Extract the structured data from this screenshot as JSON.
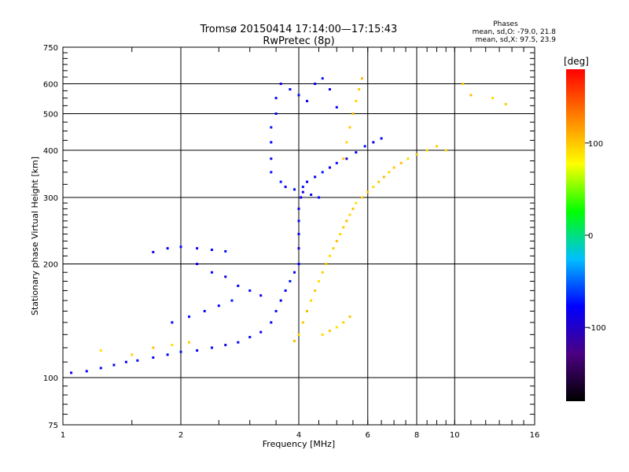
{
  "chart_data": {
    "type": "scatter",
    "title": "Tromsø 20150414 17:14:00—17:15:43",
    "subtitle": "RwPretec (8p)",
    "stats": {
      "heading": "Phases",
      "line1": "mean, sd,O: -79.0, 21.8",
      "line2": "mean, sd,X: 97.5, 23.9"
    },
    "xlabel": "Frequency [MHz]",
    "ylabel": "Stationary phase Virtual Height [km]",
    "xscale": "log",
    "yscale": "log",
    "xlim": [
      1,
      16
    ],
    "ylim": [
      75,
      750
    ],
    "xticks": [
      1,
      2,
      4,
      6,
      8,
      10,
      16
    ],
    "yticks": [
      75,
      100,
      200,
      300,
      400,
      500,
      600,
      750
    ],
    "grid": true,
    "colorbar": {
      "label": "[deg]",
      "range": [
        -180,
        180
      ],
      "ticks": [
        100,
        0,
        -100
      ],
      "colors": [
        "#000000",
        "#4b0082",
        "#0000ff",
        "#00bfff",
        "#00ff00",
        "#ffff00",
        "#ff8000",
        "#ff0000"
      ]
    },
    "series": [
      {
        "mode": "O",
        "phase_mean": -79.0,
        "phase_sd": 21.8,
        "points": [
          [
            1.05,
            103
          ],
          [
            1.15,
            104
          ],
          [
            1.25,
            106
          ],
          [
            1.35,
            108
          ],
          [
            1.45,
            110
          ],
          [
            1.55,
            111
          ],
          [
            1.7,
            113
          ],
          [
            1.85,
            115
          ],
          [
            2.0,
            117
          ],
          [
            2.2,
            118
          ],
          [
            2.4,
            120
          ],
          [
            2.6,
            122
          ],
          [
            2.8,
            124
          ],
          [
            3.0,
            128
          ],
          [
            3.2,
            132
          ],
          [
            3.4,
            140
          ],
          [
            3.5,
            150
          ],
          [
            3.6,
            160
          ],
          [
            3.7,
            170
          ],
          [
            3.8,
            180
          ],
          [
            3.9,
            190
          ],
          [
            4.0,
            200
          ],
          [
            4.0,
            220
          ],
          [
            4.0,
            240
          ],
          [
            4.0,
            260
          ],
          [
            4.0,
            280
          ],
          [
            4.05,
            300
          ],
          [
            4.1,
            320
          ],
          [
            4.2,
            330
          ],
          [
            4.4,
            340
          ],
          [
            4.6,
            350
          ],
          [
            4.8,
            360
          ],
          [
            5.0,
            370
          ],
          [
            5.3,
            380
          ],
          [
            5.6,
            395
          ],
          [
            5.9,
            410
          ],
          [
            6.2,
            420
          ],
          [
            6.5,
            430
          ],
          [
            3.4,
            350
          ],
          [
            3.4,
            380
          ],
          [
            3.4,
            420
          ],
          [
            3.4,
            460
          ],
          [
            3.5,
            500
          ],
          [
            3.5,
            550
          ],
          [
            3.6,
            600
          ],
          [
            3.8,
            580
          ],
          [
            4.0,
            560
          ],
          [
            4.2,
            540
          ],
          [
            4.4,
            600
          ],
          [
            4.6,
            620
          ],
          [
            4.8,
            580
          ],
          [
            5.0,
            520
          ],
          [
            3.6,
            330
          ],
          [
            3.7,
            320
          ],
          [
            3.9,
            315
          ],
          [
            4.1,
            310
          ],
          [
            4.3,
            305
          ],
          [
            4.5,
            300
          ],
          [
            1.7,
            215
          ],
          [
            1.85,
            220
          ],
          [
            2.0,
            222
          ],
          [
            2.2,
            220
          ],
          [
            2.4,
            218
          ],
          [
            2.6,
            216
          ],
          [
            2.2,
            200
          ],
          [
            2.4,
            190
          ],
          [
            2.6,
            185
          ],
          [
            2.8,
            175
          ],
          [
            3.0,
            170
          ],
          [
            3.2,
            165
          ],
          [
            1.9,
            140
          ],
          [
            2.1,
            145
          ],
          [
            2.3,
            150
          ],
          [
            2.5,
            155
          ],
          [
            2.7,
            160
          ]
        ]
      },
      {
        "mode": "X",
        "phase_mean": 97.5,
        "phase_sd": 23.9,
        "points": [
          [
            1.25,
            118
          ],
          [
            1.5,
            115
          ],
          [
            1.7,
            120
          ],
          [
            1.9,
            122
          ],
          [
            2.1,
            124
          ],
          [
            3.9,
            125
          ],
          [
            4.0,
            130
          ],
          [
            4.1,
            140
          ],
          [
            4.2,
            150
          ],
          [
            4.3,
            160
          ],
          [
            4.4,
            170
          ],
          [
            4.5,
            180
          ],
          [
            4.6,
            190
          ],
          [
            4.7,
            200
          ],
          [
            4.8,
            210
          ],
          [
            4.9,
            220
          ],
          [
            5.0,
            230
          ],
          [
            5.1,
            240
          ],
          [
            5.2,
            250
          ],
          [
            5.3,
            260
          ],
          [
            5.4,
            270
          ],
          [
            5.5,
            280
          ],
          [
            5.6,
            290
          ],
          [
            5.8,
            300
          ],
          [
            6.0,
            310
          ],
          [
            6.2,
            320
          ],
          [
            6.4,
            330
          ],
          [
            6.6,
            340
          ],
          [
            6.8,
            350
          ],
          [
            7.0,
            360
          ],
          [
            7.3,
            370
          ],
          [
            7.6,
            380
          ],
          [
            8.0,
            390
          ],
          [
            8.5,
            400
          ],
          [
            9.0,
            410
          ],
          [
            5.2,
            380
          ],
          [
            5.3,
            420
          ],
          [
            5.4,
            460
          ],
          [
            5.5,
            500
          ],
          [
            5.6,
            540
          ],
          [
            5.7,
            580
          ],
          [
            5.8,
            620
          ],
          [
            4.6,
            130
          ],
          [
            4.8,
            133
          ],
          [
            5.0,
            136
          ],
          [
            5.2,
            140
          ],
          [
            5.4,
            145
          ],
          [
            9.5,
            400
          ],
          [
            10.5,
            600
          ],
          [
            11.0,
            560
          ],
          [
            12.5,
            550
          ],
          [
            13.5,
            530
          ]
        ]
      }
    ]
  }
}
